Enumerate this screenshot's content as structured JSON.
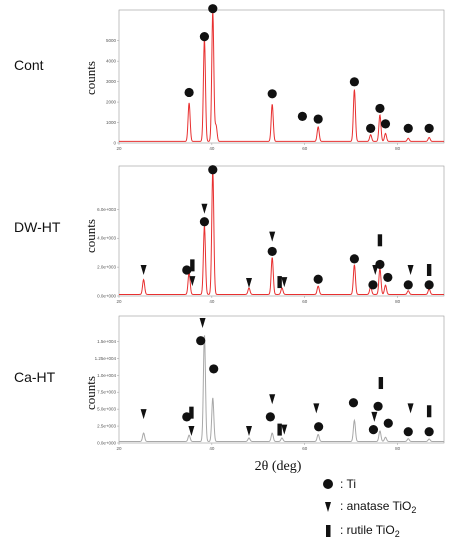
{
  "chart_data": [
    {
      "type": "line",
      "sample_label": "Cont",
      "ylabel": "counts",
      "xlim": [
        20,
        90
      ],
      "ylim": [
        0,
        5000
      ],
      "x_ticks": [
        "20",
        "40",
        "60",
        "80"
      ],
      "y_ticks": [
        "0",
        "1000",
        "2000",
        "3000",
        "4000",
        "5000"
      ],
      "line_color": "#e83030",
      "peaks": [
        {
          "x": 35.1,
          "y": 1450
        },
        {
          "x": 38.4,
          "y": 3850
        },
        {
          "x": 40.2,
          "y": 4900
        },
        {
          "x": 40.9,
          "y": 600
        },
        {
          "x": 53.0,
          "y": 1400
        },
        {
          "x": 62.9,
          "y": 550
        },
        {
          "x": 70.7,
          "y": 1950
        },
        {
          "x": 74.2,
          "y": 250
        },
        {
          "x": 76.2,
          "y": 1000
        },
        {
          "x": 77.4,
          "y": 300
        },
        {
          "x": 82.3,
          "y": 120
        },
        {
          "x": 86.8,
          "y": 150
        }
      ],
      "markers": [
        {
          "x": 35.1,
          "y": 1900,
          "phase": "Ti"
        },
        {
          "x": 38.4,
          "y": 4000,
          "phase": "Ti"
        },
        {
          "x": 40.2,
          "y": 5050,
          "phase": "Ti"
        },
        {
          "x": 53.0,
          "y": 1850,
          "phase": "Ti"
        },
        {
          "x": 59.5,
          "y": 1000,
          "phase": "Ti"
        },
        {
          "x": 62.9,
          "y": 900,
          "phase": "Ti"
        },
        {
          "x": 70.7,
          "y": 2300,
          "phase": "Ti"
        },
        {
          "x": 74.2,
          "y": 550,
          "phase": "Ti"
        },
        {
          "x": 76.2,
          "y": 1300,
          "phase": "Ti"
        },
        {
          "x": 77.4,
          "y": 720,
          "phase": "Ti"
        },
        {
          "x": 82.3,
          "y": 550,
          "phase": "Ti"
        },
        {
          "x": 86.8,
          "y": 550,
          "phase": "Ti"
        }
      ]
    },
    {
      "type": "line",
      "sample_label": "DW-HT",
      "ylabel": "counts",
      "xlim": [
        20,
        90
      ],
      "ylim": [
        0,
        7000
      ],
      "x_ticks": [
        "20",
        "40",
        "60",
        "80"
      ],
      "y_ticks": [
        "0.0e+000",
        "2.0e+003",
        "4.0e+003",
        "6.0e+003"
      ],
      "line_color": "#e83030",
      "peaks": [
        {
          "x": 25.3,
          "y": 800
        },
        {
          "x": 35.1,
          "y": 1200
        },
        {
          "x": 38.4,
          "y": 3700
        },
        {
          "x": 40.2,
          "y": 6700
        },
        {
          "x": 48.0,
          "y": 350
        },
        {
          "x": 53.0,
          "y": 2000
        },
        {
          "x": 55.1,
          "y": 350
        },
        {
          "x": 62.9,
          "y": 450
        },
        {
          "x": 70.7,
          "y": 1600
        },
        {
          "x": 74.2,
          "y": 400
        },
        {
          "x": 76.2,
          "y": 1400
        },
        {
          "x": 77.4,
          "y": 500
        },
        {
          "x": 82.3,
          "y": 200
        },
        {
          "x": 86.8,
          "y": 300
        }
      ],
      "markers": [
        {
          "x": 25.3,
          "y": 1400,
          "phase": "anatase TiO2"
        },
        {
          "x": 34.6,
          "y": 1400,
          "phase": "Ti"
        },
        {
          "x": 35.8,
          "y": 1650,
          "phase": "rutile TiO2"
        },
        {
          "x": 35.8,
          "y": 800,
          "phase": "anatase TiO2"
        },
        {
          "x": 38.4,
          "y": 4700,
          "phase": "anatase TiO2"
        },
        {
          "x": 38.4,
          "y": 4000,
          "phase": "Ti"
        },
        {
          "x": 40.2,
          "y": 6800,
          "phase": "Ti"
        },
        {
          "x": 48.0,
          "y": 700,
          "phase": "anatase TiO2"
        },
        {
          "x": 53.0,
          "y": 3200,
          "phase": "anatase TiO2"
        },
        {
          "x": 53.0,
          "y": 2400,
          "phase": "Ti"
        },
        {
          "x": 54.6,
          "y": 750,
          "phase": "rutile TiO2"
        },
        {
          "x": 55.6,
          "y": 750,
          "phase": "anatase TiO2"
        },
        {
          "x": 62.9,
          "y": 900,
          "phase": "Ti"
        },
        {
          "x": 70.7,
          "y": 2000,
          "phase": "Ti"
        },
        {
          "x": 75.2,
          "y": 1400,
          "phase": "anatase TiO2"
        },
        {
          "x": 74.7,
          "y": 600,
          "phase": "Ti"
        },
        {
          "x": 76.2,
          "y": 3000,
          "phase": "rutile TiO2"
        },
        {
          "x": 76.2,
          "y": 1700,
          "phase": "Ti"
        },
        {
          "x": 77.9,
          "y": 1000,
          "phase": "Ti"
        },
        {
          "x": 82.8,
          "y": 1400,
          "phase": "anatase TiO2"
        },
        {
          "x": 82.3,
          "y": 600,
          "phase": "Ti"
        },
        {
          "x": 86.8,
          "y": 1400,
          "phase": "rutile TiO2"
        },
        {
          "x": 86.8,
          "y": 600,
          "phase": "Ti"
        }
      ]
    },
    {
      "type": "line",
      "sample_label": "Ca-HT",
      "ylabel": "counts",
      "xlim": [
        20,
        90
      ],
      "ylim": [
        0,
        18000
      ],
      "x_ticks": [
        "20",
        "40",
        "60",
        "80"
      ],
      "y_ticks": [
        "0.0e+000",
        "2.5e+003",
        "5.0e+003",
        "7.5e+003",
        "1.0e+004",
        "1.25e+004",
        "1.5e+004"
      ],
      "line_color": "#a8a8a8",
      "peaks": [
        {
          "x": 25.3,
          "y": 1200
        },
        {
          "x": 35.1,
          "y": 900
        },
        {
          "x": 38.4,
          "y": 15200
        },
        {
          "x": 40.2,
          "y": 6200
        },
        {
          "x": 48.0,
          "y": 500
        },
        {
          "x": 53.0,
          "y": 1200
        },
        {
          "x": 55.1,
          "y": 500
        },
        {
          "x": 62.9,
          "y": 1000
        },
        {
          "x": 70.7,
          "y": 3000
        },
        {
          "x": 76.2,
          "y": 1500
        },
        {
          "x": 77.4,
          "y": 600
        },
        {
          "x": 82.3,
          "y": 400
        },
        {
          "x": 86.8,
          "y": 350
        }
      ],
      "markers": [
        {
          "x": 25.3,
          "y": 4100,
          "phase": "anatase TiO2"
        },
        {
          "x": 34.6,
          "y": 3700,
          "phase": "Ti"
        },
        {
          "x": 35.6,
          "y": 4300,
          "phase": "rutile TiO2"
        },
        {
          "x": 35.6,
          "y": 1700,
          "phase": "anatase TiO2"
        },
        {
          "x": 38.0,
          "y": 17000,
          "phase": "anatase TiO2"
        },
        {
          "x": 37.6,
          "y": 14500,
          "phase": "Ti"
        },
        {
          "x": 40.4,
          "y": 10500,
          "phase": "Ti"
        },
        {
          "x": 48.0,
          "y": 1700,
          "phase": "anatase TiO2"
        },
        {
          "x": 53.0,
          "y": 6200,
          "phase": "anatase TiO2"
        },
        {
          "x": 52.6,
          "y": 3700,
          "phase": "Ti"
        },
        {
          "x": 54.6,
          "y": 1900,
          "phase": "rutile TiO2"
        },
        {
          "x": 55.6,
          "y": 1900,
          "phase": "anatase TiO2"
        },
        {
          "x": 62.5,
          "y": 4900,
          "phase": "anatase TiO2"
        },
        {
          "x": 63.0,
          "y": 2300,
          "phase": "Ti"
        },
        {
          "x": 70.5,
          "y": 5700,
          "phase": "Ti"
        },
        {
          "x": 75.0,
          "y": 3700,
          "phase": "anatase TiO2"
        },
        {
          "x": 74.8,
          "y": 1900,
          "phase": "Ti"
        },
        {
          "x": 76.4,
          "y": 8500,
          "phase": "rutile TiO2"
        },
        {
          "x": 75.8,
          "y": 5200,
          "phase": "Ti"
        },
        {
          "x": 78.0,
          "y": 2800,
          "phase": "Ti"
        },
        {
          "x": 82.8,
          "y": 4900,
          "phase": "anatase TiO2"
        },
        {
          "x": 82.3,
          "y": 1600,
          "phase": "Ti"
        },
        {
          "x": 86.8,
          "y": 4500,
          "phase": "rutile TiO2"
        },
        {
          "x": 86.8,
          "y": 1600,
          "phase": "Ti"
        }
      ]
    }
  ],
  "xlabel": "2θ (deg)",
  "legend": [
    {
      "symbol": "circle",
      "label": ": Ti"
    },
    {
      "symbol": "triangle",
      "label": ": anatase TiO",
      "subscript": "2"
    },
    {
      "symbol": "bar",
      "label": ": rutile TiO",
      "subscript": "2"
    }
  ]
}
